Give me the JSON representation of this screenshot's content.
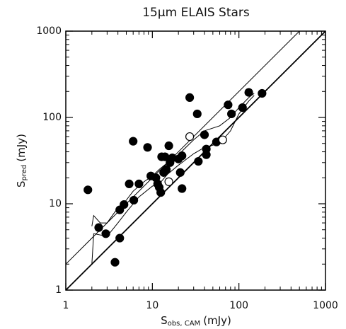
{
  "chart_data": {
    "type": "scatter",
    "title": "15μm ELAIS Stars",
    "x_label": {
      "main": "S",
      "sub": "obs, CAM",
      "unit": "(mJy)"
    },
    "y_label": {
      "main": "S",
      "sub": "pred",
      "unit": "(mJy)"
    },
    "log_x": true,
    "log_y": true,
    "xlim": [
      1,
      1000
    ],
    "ylim": [
      1,
      1000
    ],
    "xticks": [
      1,
      10,
      100,
      1000
    ],
    "yticks": [
      1,
      10,
      100,
      1000
    ],
    "minor_ticks": true,
    "series": [
      {
        "marker": "filled",
        "color": "#000",
        "x": [
          1.8,
          2.4,
          2.9,
          3.7,
          4.2,
          4.2,
          4.7,
          5.4,
          6.0,
          6.1,
          7.0,
          8.8,
          9.6,
          11,
          11.5,
          12,
          12.5,
          12.8,
          13.5,
          14,
          14.5,
          15.5,
          16,
          17,
          20,
          21,
          22,
          22,
          27,
          33,
          34,
          40,
          42,
          42,
          55,
          75,
          82,
          110,
          130,
          185
        ],
        "y": [
          14.5,
          5.3,
          4.5,
          2.1,
          4.0,
          8.5,
          9.8,
          17,
          53,
          11,
          17,
          45,
          21,
          20,
          17,
          15.5,
          13.5,
          35,
          23,
          35,
          25,
          47,
          30,
          34,
          33,
          23,
          15,
          36,
          170,
          110,
          31,
          63,
          37,
          43,
          52,
          140,
          110,
          130,
          195,
          190
        ]
      },
      {
        "marker": "open",
        "color": "#000",
        "x": [
          15.5,
          27,
          65
        ],
        "y": [
          18,
          60,
          55
        ]
      }
    ],
    "lines": [
      {
        "style": "thick",
        "x": [
          1,
          1000
        ],
        "y": [
          1,
          1000
        ]
      },
      {
        "style": "thin",
        "x": [
          1,
          500
        ],
        "y": [
          2,
          1000
        ]
      },
      {
        "style": "thin",
        "x": [
          2,
          2.1,
          2.5,
          3,
          4,
          5,
          6,
          8,
          10,
          12,
          15,
          20,
          30,
          40,
          60,
          80,
          100,
          130,
          150
        ],
        "y": [
          5.5,
          7.3,
          6,
          6,
          9,
          11,
          14,
          18,
          21,
          25,
          30,
          37,
          55,
          70,
          80,
          100,
          130,
          170,
          190
        ]
      },
      {
        "style": "thin",
        "x": [
          2,
          2.1,
          3,
          4,
          5,
          7,
          10,
          12,
          15,
          20,
          30,
          40,
          60,
          80,
          100,
          130,
          150
        ],
        "y": [
          2,
          4.5,
          4.2,
          6,
          8,
          12,
          16,
          17,
          22,
          28,
          38,
          45,
          50,
          70,
          110,
          155,
          180
        ]
      }
    ]
  }
}
